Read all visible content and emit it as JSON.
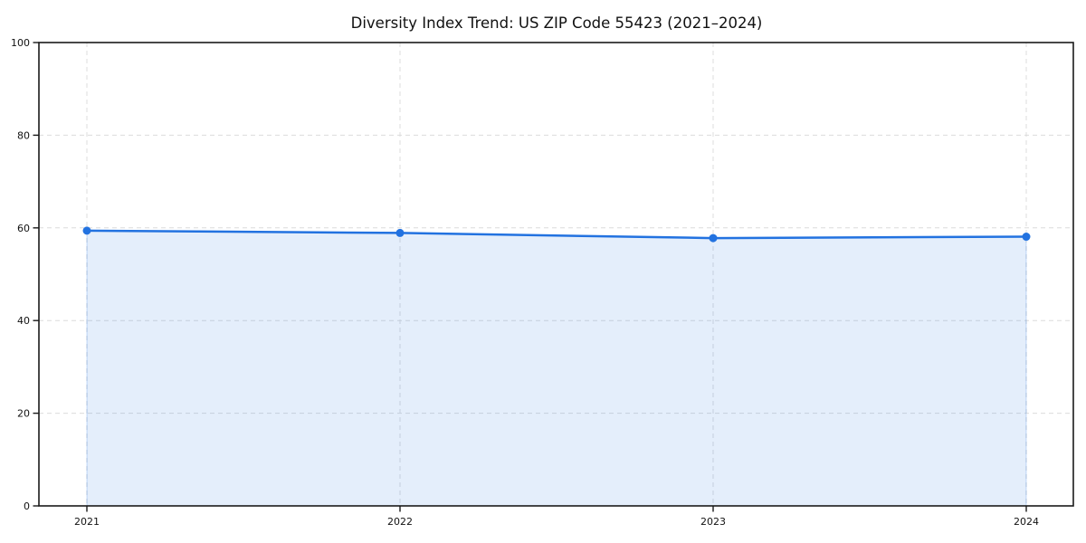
{
  "chart_data": {
    "type": "area",
    "title": "Diversity Index Trend: US ZIP Code 55423 (2021–2024)",
    "x": [
      "2021",
      "2022",
      "2023",
      "2024"
    ],
    "series": [
      {
        "name": "Diversity Index",
        "values": [
          59.4,
          58.9,
          57.8,
          58.1
        ]
      }
    ],
    "xlabel": "",
    "ylabel": "",
    "ylim": [
      0,
      100
    ],
    "yticks": [
      0,
      20,
      40,
      60,
      80,
      100
    ],
    "grid": "dashed, both axes",
    "legend_position": "none",
    "colors": {
      "line": "#2272e0",
      "marker": "#2272e0",
      "fill": "rgba(34,114,224,0.12)",
      "fill_edge": "rgba(34,114,224,0.25)",
      "grid": "#dcdcdc",
      "spine": "#1a1a1a",
      "text": "#111111",
      "background": "#ffffff"
    }
  }
}
